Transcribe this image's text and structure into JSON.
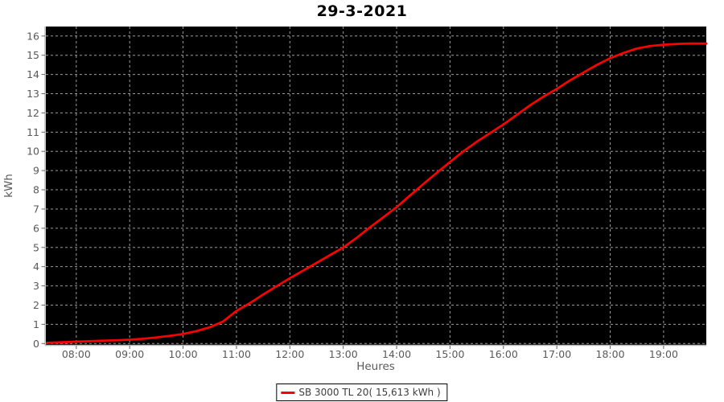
{
  "title": "29-3-2021",
  "legend": {
    "label": "SB 3000 TL 20( 15,613 kWh )"
  },
  "colors": {
    "background": "#ffffff",
    "plot_background": "#000000",
    "grid": "#9c9c9c",
    "axis_line": "#b8b8b8",
    "tick": "#666666",
    "tick_label": "#595959",
    "series_red": "#ff0000"
  },
  "chart_data": {
    "type": "line",
    "title": "29-3-2021",
    "xlabel": "Heures",
    "ylabel": "kWh",
    "grid": true,
    "legend_position": "bottom",
    "xlim": [
      7.43,
      19.8
    ],
    "ylim": [
      0,
      16
    ],
    "x_ticks": [
      {
        "t": 8,
        "label": "08:00"
      },
      {
        "t": 9,
        "label": "09:00"
      },
      {
        "t": 10,
        "label": "10:00"
      },
      {
        "t": 11,
        "label": "11:00"
      },
      {
        "t": 12,
        "label": "12:00"
      },
      {
        "t": 13,
        "label": "13:00"
      },
      {
        "t": 14,
        "label": "14:00"
      },
      {
        "t": 15,
        "label": "15:00"
      },
      {
        "t": 16,
        "label": "16:00"
      },
      {
        "t": 17,
        "label": "17:00"
      },
      {
        "t": 18,
        "label": "18:00"
      },
      {
        "t": 19,
        "label": "19:00"
      }
    ],
    "y_ticks": [
      0,
      1,
      2,
      3,
      4,
      5,
      6,
      7,
      8,
      9,
      10,
      11,
      12,
      13,
      14,
      15,
      16
    ],
    "series": [
      {
        "name": "SB 3000 TL 20( 15,613 kWh )",
        "color": "#ff0000",
        "final_value_kwh": 15.613,
        "x_hours": [
          7.45,
          7.75,
          8.0,
          8.25,
          8.5,
          8.75,
          9.0,
          9.25,
          9.5,
          9.75,
          10.0,
          10.25,
          10.5,
          10.75,
          11.0,
          11.25,
          11.5,
          11.75,
          12.0,
          12.25,
          12.5,
          12.75,
          13.0,
          13.25,
          13.5,
          13.75,
          14.0,
          14.25,
          14.5,
          14.75,
          15.0,
          15.25,
          15.5,
          15.75,
          16.0,
          16.25,
          16.5,
          16.75,
          17.0,
          17.25,
          17.5,
          17.75,
          18.0,
          18.25,
          18.5,
          18.75,
          19.0,
          19.25,
          19.5,
          19.8
        ],
        "values": [
          0.04,
          0.07,
          0.1,
          0.12,
          0.15,
          0.17,
          0.2,
          0.25,
          0.32,
          0.4,
          0.5,
          0.65,
          0.85,
          1.15,
          1.7,
          2.1,
          2.55,
          2.98,
          3.4,
          3.8,
          4.2,
          4.6,
          5.0,
          5.5,
          6.05,
          6.57,
          7.1,
          7.7,
          8.3,
          8.88,
          9.45,
          10.0,
          10.5,
          10.95,
          11.4,
          11.9,
          12.4,
          12.85,
          13.25,
          13.7,
          14.1,
          14.5,
          14.85,
          15.12,
          15.35,
          15.48,
          15.55,
          15.59,
          15.61,
          15.613
        ]
      }
    ]
  }
}
